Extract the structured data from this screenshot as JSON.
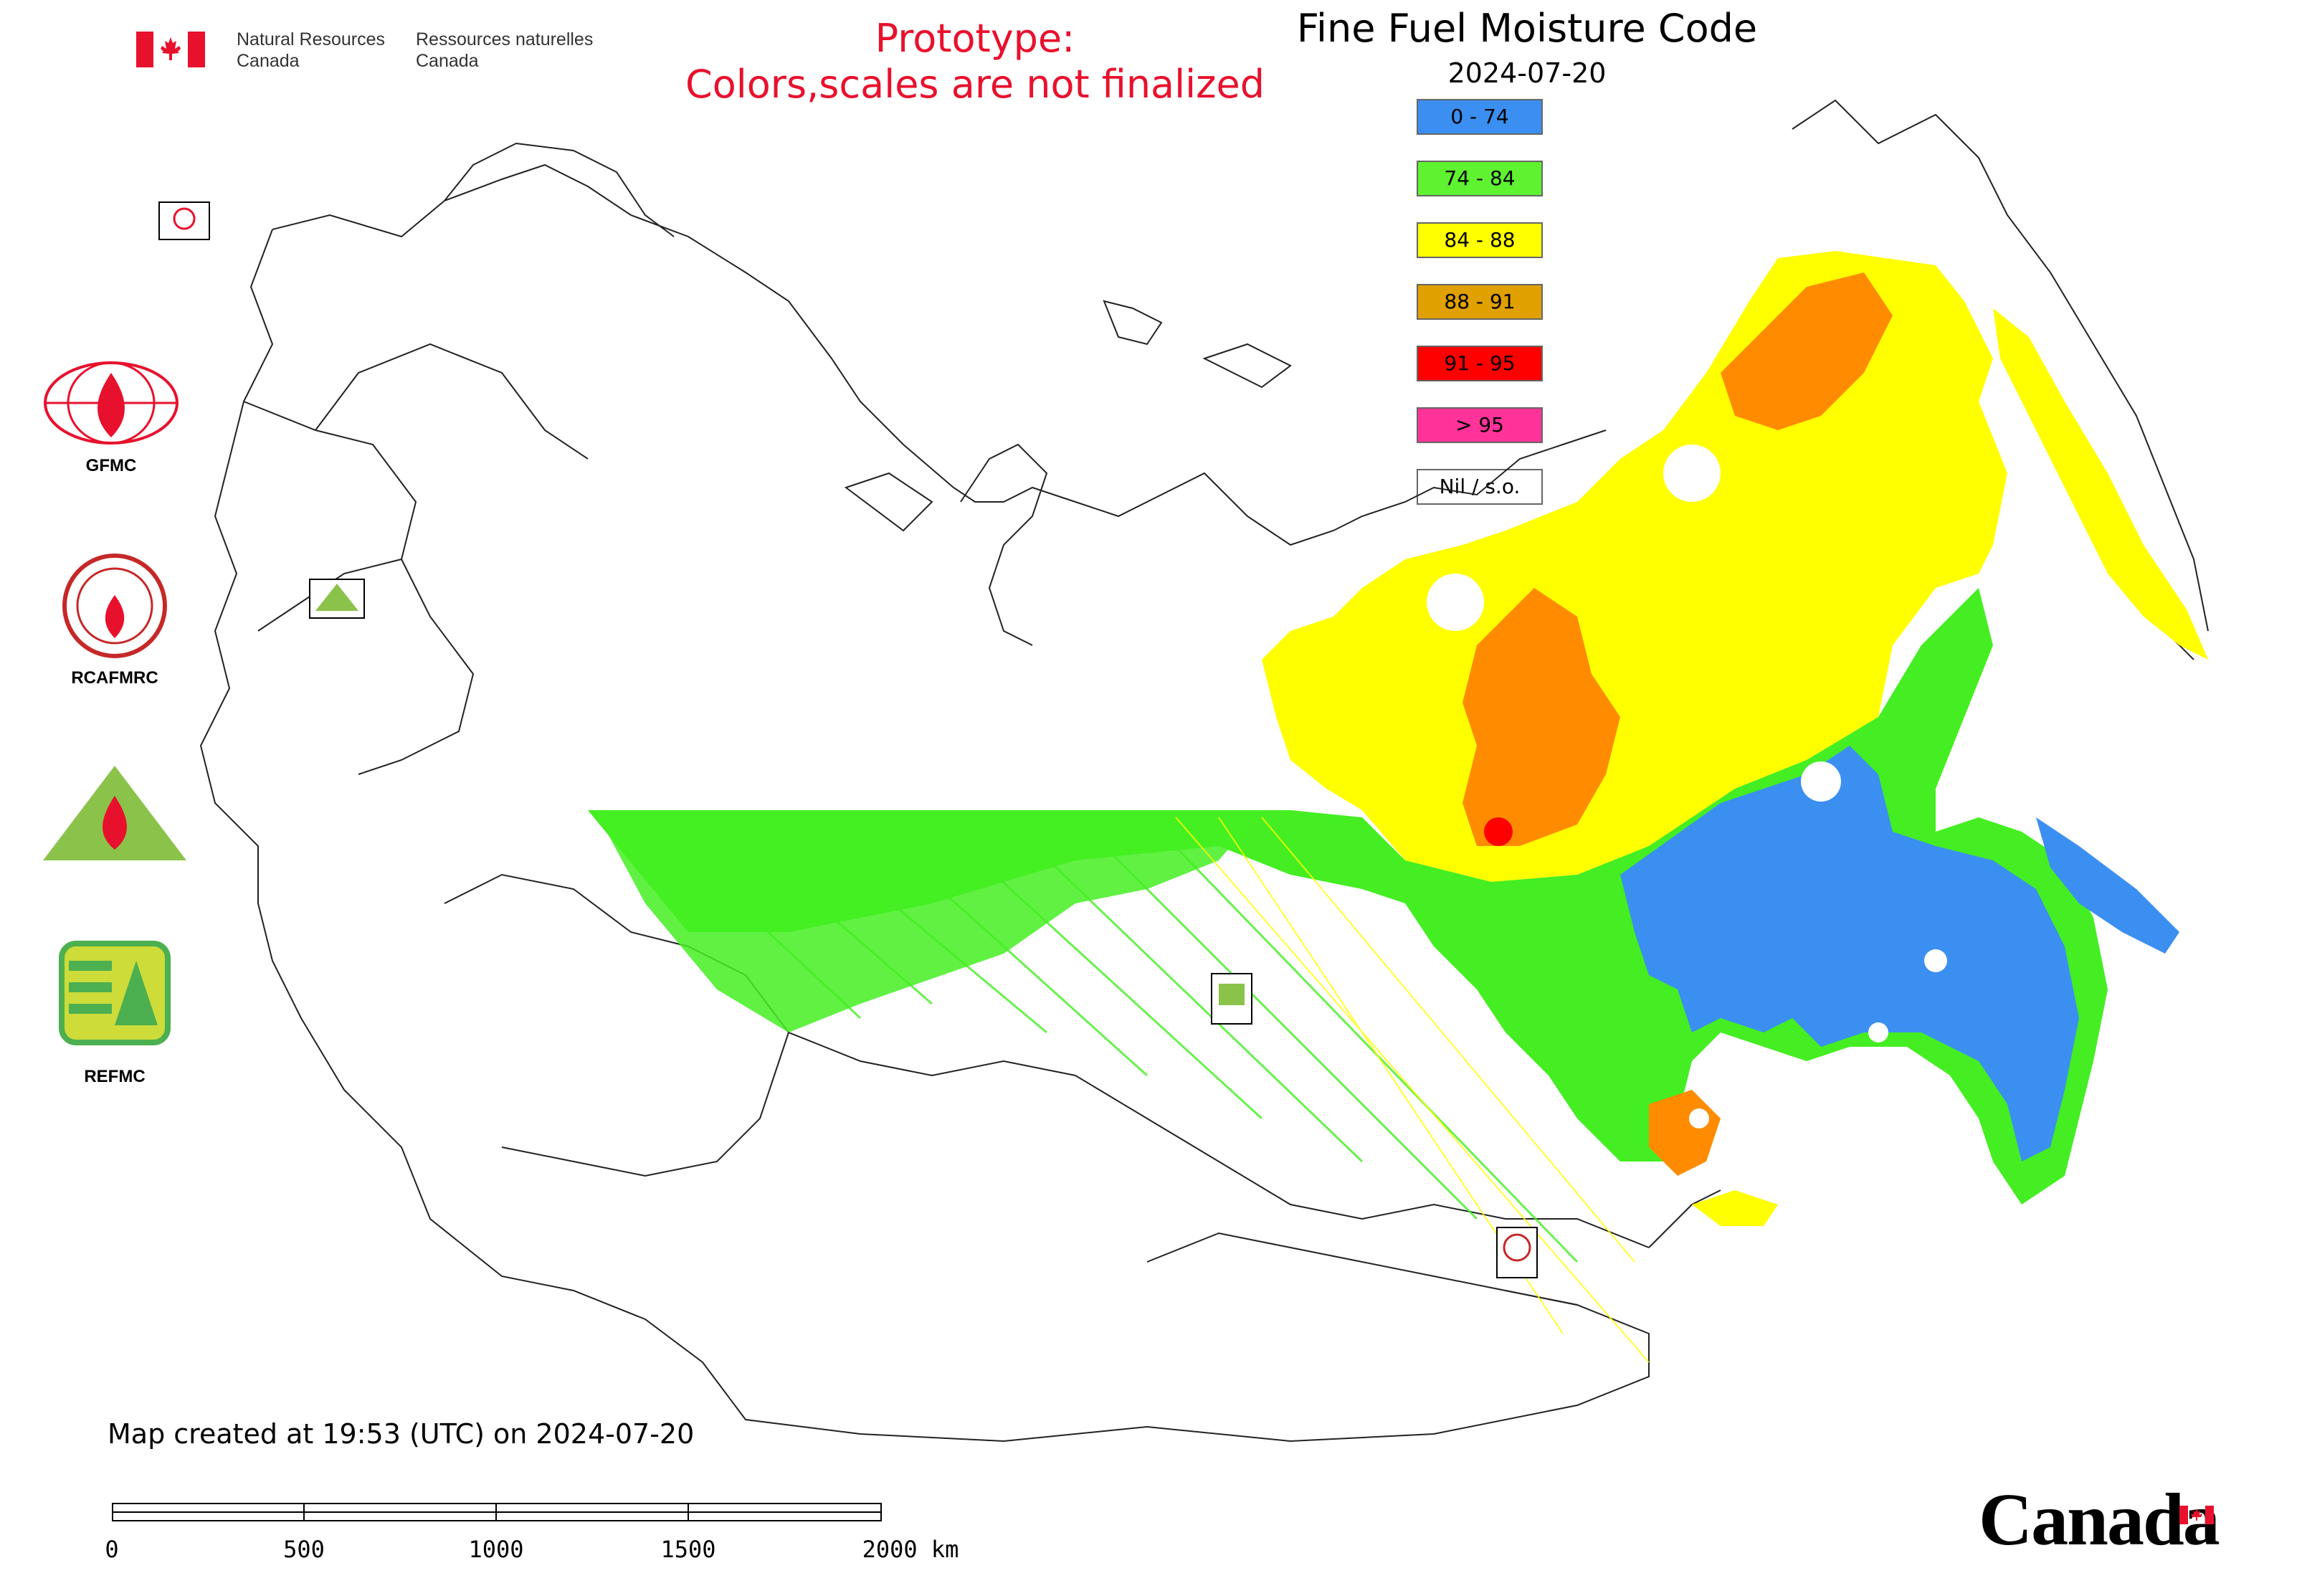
{
  "header": {
    "government_en": [
      "Natural Resources",
      "Canada"
    ],
    "government_fr": [
      "Ressources naturelles",
      "Canada"
    ],
    "prototype_note": [
      "Prototype:",
      "Colors,scales are not finalized"
    ]
  },
  "map": {
    "title": "Fine Fuel Moisture Code",
    "date": "2024-07-20",
    "legend": [
      {
        "label": "0 - 74",
        "color": "#3b8ff0"
      },
      {
        "label": "74 - 84",
        "color": "#5ef230"
      },
      {
        "label": "84 - 88",
        "color": "#ffff00"
      },
      {
        "label": "88 - 91",
        "color": "#e0a000"
      },
      {
        "label": "91 - 95",
        "color": "#ff0000"
      },
      {
        "label": "> 95",
        "color": "#ff3399"
      },
      {
        "label": "Nil / s.o.",
        "color": "#ffffff"
      }
    ]
  },
  "organizations": [
    {
      "label": "GFMC",
      "icon": "gfmc-logo-icon"
    },
    {
      "label": "RCAFMRC",
      "icon": "rcafmrc-logo-icon"
    },
    {
      "label": "",
      "icon": "reefmc-logo-icon"
    },
    {
      "label": "REFMC",
      "icon": "refmc-logo-icon"
    }
  ],
  "footer": {
    "created_note": "Map created at 19:53 (UTC) on 2024-07-20",
    "scale_ticks": [
      "0",
      "500",
      "1000",
      "1500",
      "2000 km"
    ],
    "wordmark": "Canada"
  }
}
